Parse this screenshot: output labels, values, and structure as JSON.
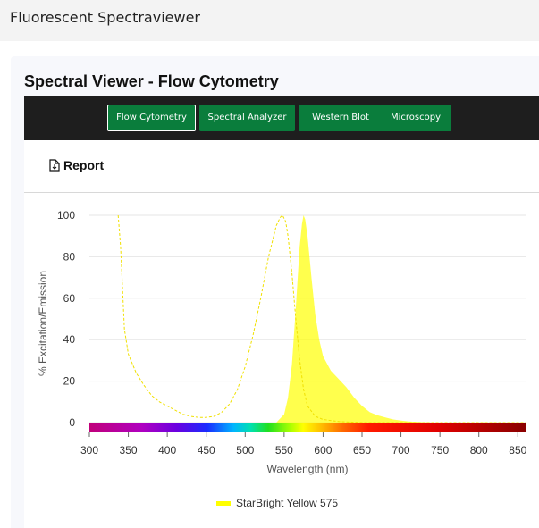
{
  "app": {
    "title": "Fluorescent Spectraviewer"
  },
  "card": {
    "title": "Spectral Viewer - Flow Cytometry"
  },
  "toolbar": {
    "buttons": [
      {
        "label": "Flow Cytometry",
        "active": true
      },
      {
        "label": "Spectral Analyzer",
        "active": false
      },
      {
        "label": "Western Blot",
        "active": false
      },
      {
        "label": "Microscopy",
        "active": false
      }
    ],
    "background": "#1e1e1e",
    "button_color": "#0a7d3c"
  },
  "report": {
    "label": "Report",
    "icon": "document-icon"
  },
  "chart_data": {
    "type": "area",
    "xlabel": "Wavelength (nm)",
    "ylabel": "% Excitation/Emission",
    "xlim": [
      300,
      860
    ],
    "ylim": [
      0,
      100
    ],
    "x_ticks": [
      300,
      350,
      400,
      450,
      500,
      550,
      600,
      650,
      700,
      750,
      800,
      850
    ],
    "y_ticks": [
      0,
      20,
      40,
      60,
      80,
      100
    ],
    "grid": true,
    "legend": {
      "position": "bottom",
      "entries": [
        "StarBright Yellow 575"
      ]
    },
    "series": [
      {
        "name": "StarBright Yellow 575",
        "color": "#ffff00",
        "excitation": {
          "x": [
            337,
            340,
            345,
            350,
            360,
            370,
            380,
            390,
            400,
            410,
            420,
            430,
            440,
            450,
            460,
            470,
            480,
            490,
            500,
            510,
            520,
            530,
            540,
            545,
            548,
            552,
            555,
            560,
            565,
            570,
            575,
            580,
            590,
            600,
            620,
            650,
            700,
            750,
            800,
            860
          ],
          "y": [
            100,
            85,
            45,
            33,
            24,
            18,
            13,
            10,
            8,
            6,
            4,
            3,
            2.5,
            2.5,
            3,
            5,
            9,
            16,
            27,
            42,
            60,
            80,
            95,
            99,
            100,
            97,
            90,
            72,
            50,
            30,
            16,
            8,
            3,
            1.5,
            0.5,
            0,
            0,
            0,
            0,
            0
          ]
        },
        "emission": {
          "x": [
            540,
            550,
            555,
            560,
            565,
            570,
            573,
            575,
            577,
            580,
            585,
            590,
            595,
            600,
            610,
            620,
            630,
            640,
            650,
            660,
            670,
            680,
            690,
            700,
            710,
            720,
            740,
            860
          ],
          "y": [
            0,
            4,
            12,
            28,
            55,
            85,
            96,
            100,
            98,
            90,
            70,
            52,
            40,
            32,
            25,
            21,
            17,
            12,
            8,
            5,
            3.5,
            2.5,
            1.5,
            1,
            0.5,
            0.3,
            0,
            0
          ]
        }
      }
    ]
  }
}
